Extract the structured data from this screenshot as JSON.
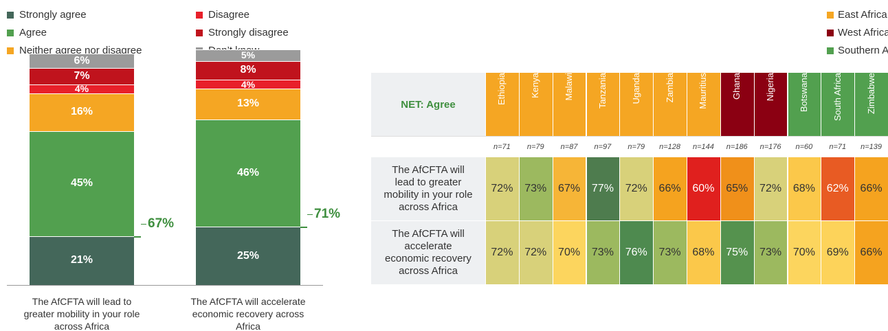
{
  "chart_data": [
    {
      "type": "stacked_bar",
      "categories": [
        "The AfCFTA will lead to greater mobility in your role across Africa",
        "The AfCFTA will accelerate economic recovery across Africa"
      ],
      "ylim": [
        0,
        100
      ],
      "series": [
        {
          "name": "Strongly agree",
          "color": "#44675a",
          "values": [
            21,
            25
          ],
          "value_labels": [
            "21%",
            "25%"
          ]
        },
        {
          "name": "Agree",
          "color": "#52a04f",
          "values": [
            45,
            46
          ],
          "value_labels": [
            "45%",
            "46%"
          ]
        },
        {
          "name": "Neither agree nor disagree",
          "color": "#f5a623",
          "values": [
            16,
            13
          ],
          "value_labels": [
            "16%",
            "13%"
          ]
        },
        {
          "name": "Disagree",
          "color": "#e8202a",
          "values": [
            4,
            4
          ],
          "value_labels": [
            "4%",
            "4%"
          ]
        },
        {
          "name": "Strongly disagree",
          "color": "#c0131d",
          "values": [
            7,
            8
          ],
          "value_labels": [
            "7%",
            "8%"
          ]
        },
        {
          "name": "Don’t know",
          "color": "#9b9b9b",
          "values": [
            6,
            5
          ],
          "value_labels": [
            "6%",
            "5%"
          ]
        }
      ],
      "net": {
        "values": [
          67,
          71
        ],
        "value_labels": [
          "67%",
          "71%"
        ],
        "color": "#3f8f3f"
      }
    },
    {
      "type": "heatmap",
      "title": "NET: Agree",
      "regions": [
        {
          "name": "East Africa",
          "color": "#f5a623"
        },
        {
          "name": "West Africa",
          "color": "#8b0012"
        },
        {
          "name": "Southern Africa",
          "color": "#52a04f"
        }
      ],
      "columns": [
        {
          "name": "Ethiopia",
          "region": 0,
          "n": "n=71"
        },
        {
          "name": "Kenya",
          "region": 0,
          "n": "n=79"
        },
        {
          "name": "Malawi",
          "region": 0,
          "n": "n=87"
        },
        {
          "name": "Tanzania",
          "region": 0,
          "n": "n=97"
        },
        {
          "name": "Uganda",
          "region": 0,
          "n": "n=79"
        },
        {
          "name": "Zambia",
          "region": 0,
          "n": "n=128"
        },
        {
          "name": "Mauritius",
          "region": 0,
          "n": "n=144"
        },
        {
          "name": "Ghana",
          "region": 1,
          "n": "n=186"
        },
        {
          "name": "Nigeria",
          "region": 1,
          "n": "n=176"
        },
        {
          "name": "Botswana",
          "region": 2,
          "n": "n=60"
        },
        {
          "name": "South Africa",
          "region": 2,
          "n": "n=71"
        },
        {
          "name": "Zimbabwe",
          "region": 2,
          "n": "n=139"
        }
      ],
      "rows": [
        {
          "label": "The AfCFTA will lead to greater mobility in your role across Africa",
          "values": [
            72,
            73,
            67,
            77,
            72,
            66,
            60,
            65,
            72,
            68,
            62,
            66
          ],
          "value_labels": [
            "72%",
            "73%",
            "67%",
            "77%",
            "72%",
            "66%",
            "60%",
            "65%",
            "72%",
            "68%",
            "62%",
            "66%"
          ],
          "colors": [
            "#d8d17a",
            "#9cb95f",
            "#f6b537",
            "#4e7c4e",
            "#d8d17a",
            "#f5a31f",
            "#e0201e",
            "#f0901a",
            "#d8d17a",
            "#fbc84a",
            "#e85b23",
            "#f5a31f"
          ]
        },
        {
          "label": "The AfCFTA will accelerate economic recovery across Africa",
          "values": [
            72,
            72,
            70,
            73,
            76,
            73,
            68,
            75,
            73,
            70,
            69,
            66
          ],
          "value_labels": [
            "72%",
            "72%",
            "70%",
            "73%",
            "76%",
            "73%",
            "68%",
            "75%",
            "73%",
            "70%",
            "69%",
            "66%"
          ],
          "colors": [
            "#d8d17a",
            "#d8d17a",
            "#fcd55e",
            "#9cb95f",
            "#4e8a4f",
            "#9cb95f",
            "#fbc84a",
            "#55924e",
            "#9cb95f",
            "#fcd55e",
            "#fdd35a",
            "#f5a31f"
          ]
        }
      ]
    }
  ]
}
